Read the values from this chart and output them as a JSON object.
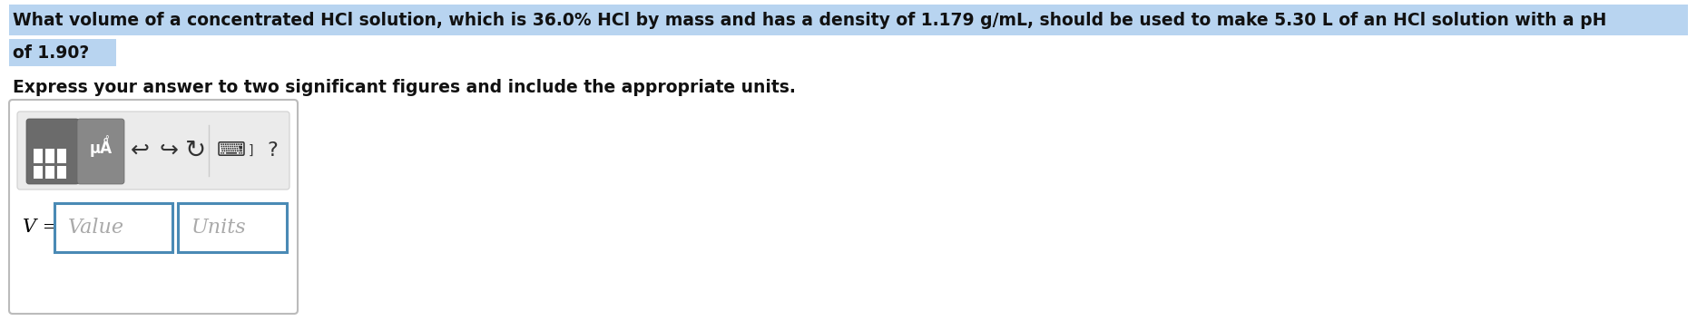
{
  "question_line1": "What volume of a concentrated HCl solution, which is 36.0% HCl by mass and has a density of 1.179 g/mL, should be used to make 5.30 L of an HCl solution with a pH",
  "question_line2": "of 1.90?",
  "instruction": "Express your answer to two significant figures and include the appropriate units.",
  "variable_label": "V =",
  "value_placeholder": "Value",
  "units_placeholder": "Units",
  "highlight_color": "#b8d4f0",
  "outer_box_border": "#bbbbbb",
  "toolbar_bg": "#ebebeb",
  "toolbar_border": "#d0d0d0",
  "btn1_color": "#6b6b6b",
  "btn2_color": "#888888",
  "btn_text_color": "#ffffff",
  "input_border": "#4a8ab5",
  "input_bg": "#ffffff",
  "placeholder_color": "#aaaaaa",
  "arrow_color": "#333333",
  "bg_color": "#ffffff",
  "question_fontsize": 13.5,
  "instruction_fontsize": 13.5,
  "variable_fontsize": 15,
  "placeholder_fontsize": 16,
  "toolbar_symbol_fontsize": 18
}
